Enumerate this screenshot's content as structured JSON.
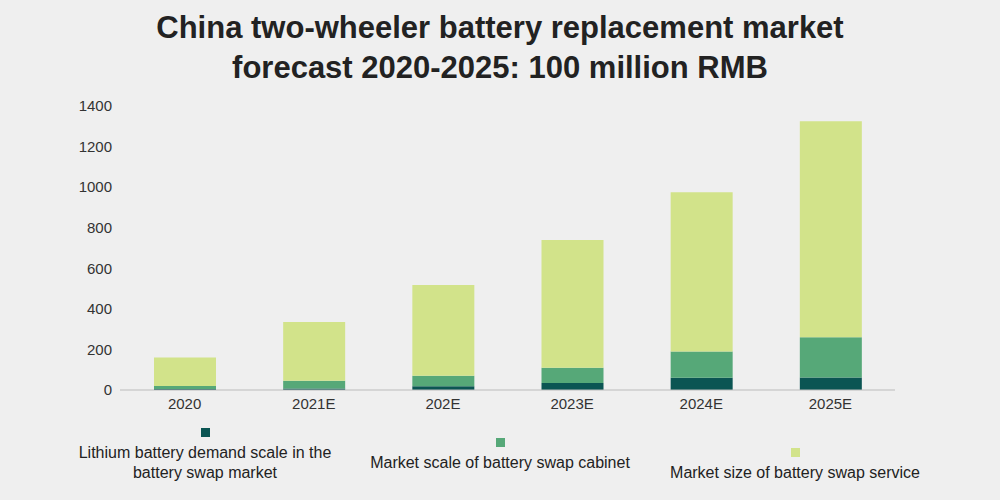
{
  "chart_data": {
    "type": "bar",
    "title": "China two-wheeler battery replacement market forecast 2020-2025: 100 million RMB",
    "categories": [
      "2020",
      "2021E",
      "202E",
      "2023E",
      "2024E",
      "2025E"
    ],
    "series": [
      {
        "name": "Lithium battery demand scale in the battery swap market",
        "color": "#0b5553",
        "values": [
          5,
          8,
          18,
          35,
          60,
          62
        ]
      },
      {
        "name": "Market scale of battery swap cabinet",
        "color": "#56a878",
        "values": [
          15,
          37,
          52,
          75,
          130,
          198
        ]
      },
      {
        "name": "Market size of battery swap service",
        "color": "#d2e38a",
        "values": [
          140,
          290,
          448,
          630,
          785,
          1065
        ]
      }
    ],
    "ylim": [
      0,
      1400
    ],
    "yticks": [
      0,
      200,
      400,
      600,
      800,
      1000,
      1200,
      1400
    ],
    "stacked": true,
    "grid": false,
    "legend": "bottom"
  }
}
